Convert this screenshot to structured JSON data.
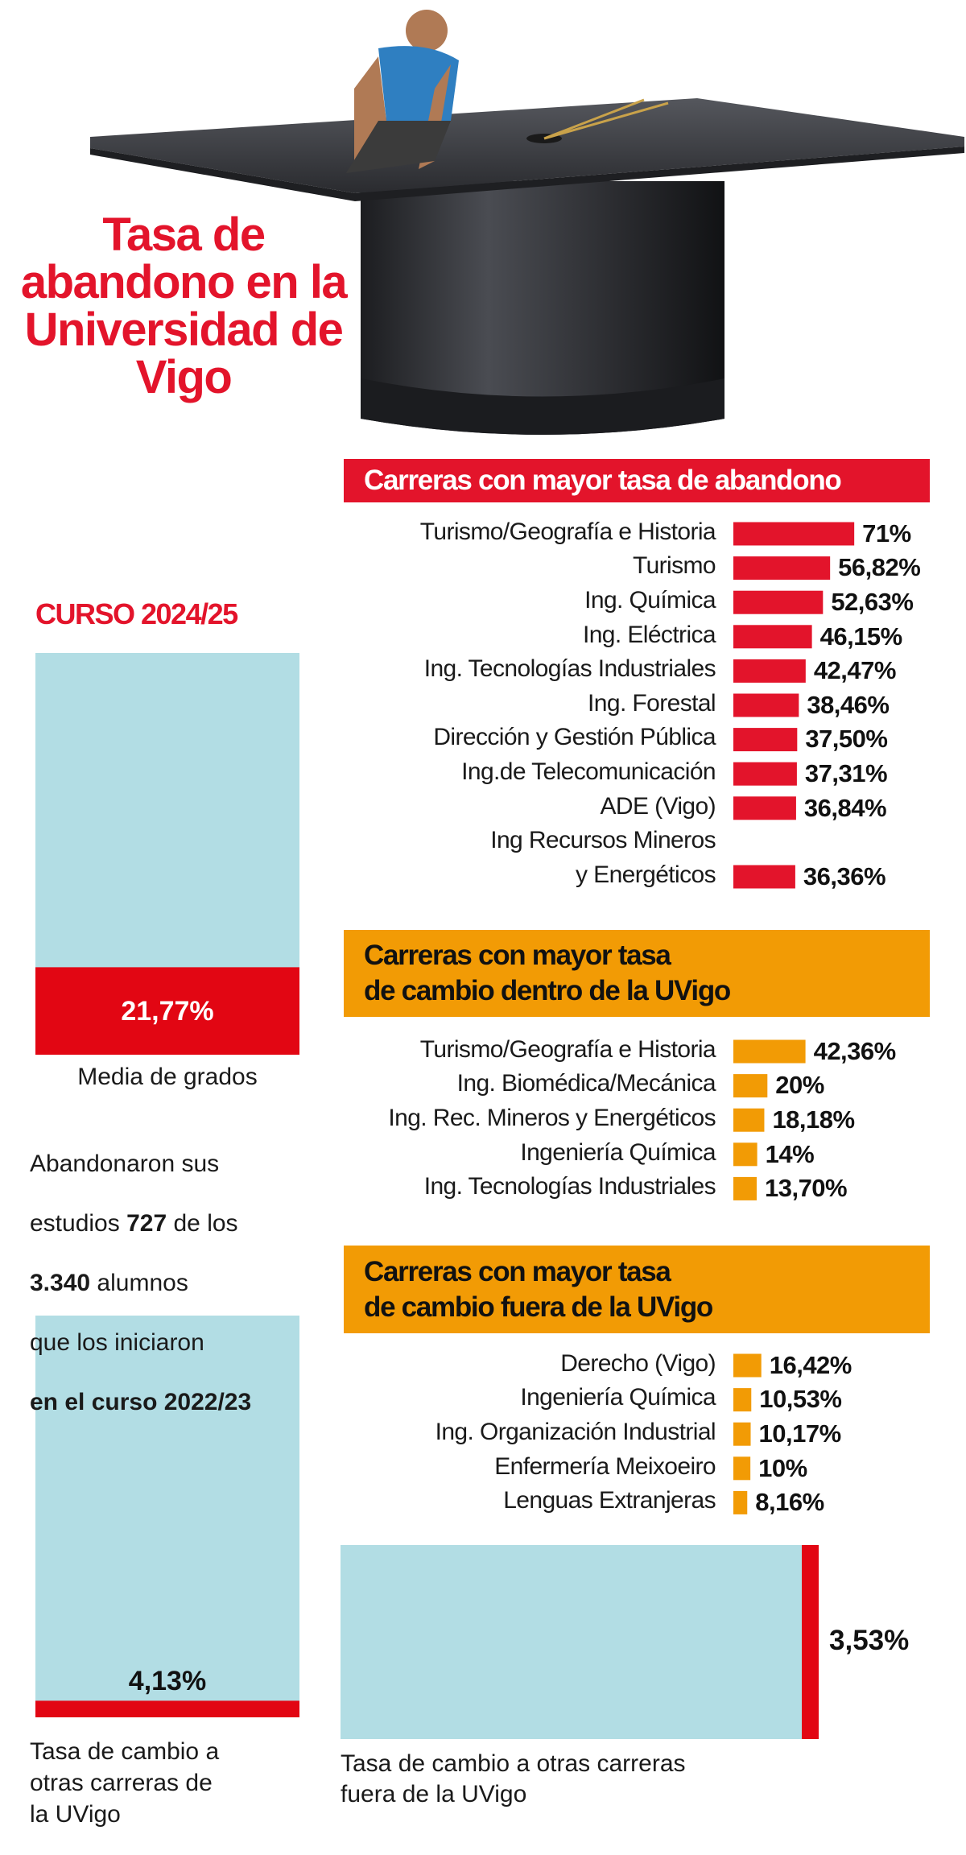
{
  "title": "Tasa de abandono en la Universidad de Vigo",
  "course": "CURSO 2024/25",
  "summary": [
    "Abandonaron sus",
    "estudios",
    "727",
    "de los",
    "3.340",
    "alumnos",
    "que los iniciaron",
    "en el curso 2022/23"
  ],
  "chart_data": [
    {
      "type": "bar",
      "orientation": "horizontal",
      "title": "Carreras con mayor tasa de abandono",
      "color": "#e3142b",
      "categories": [
        "Turismo/Geografía e Historia",
        "Turismo",
        "Ing. Química",
        "Ing. Eléctrica",
        "Ing. Tecnologías Industriales",
        "Ing. Forestal",
        "Dirección y Gestión Pública",
        "Ing.de Telecomunicación",
        "ADE (Vigo)",
        "Ing Recursos Mineros\ny Energéticos"
      ],
      "values": [
        71,
        56.82,
        52.63,
        46.15,
        42.47,
        38.46,
        37.5,
        37.31,
        36.84,
        36.36
      ],
      "value_labels": [
        "71%",
        "56,82%",
        "52,63%",
        "46,15%",
        "42,47%",
        "38,46%",
        "37,50%",
        "37,31%",
        "36,84%",
        "36,36%"
      ]
    },
    {
      "type": "bar",
      "orientation": "horizontal",
      "title": "Carreras con mayor tasa\nde cambio dentro de la UVigo",
      "color": "#f29b05",
      "categories": [
        "Turismo/Geografía e Historia",
        "Ing. Biomédica/Mecánica",
        "Ing. Rec. Mineros y Energéticos",
        "Ingeniería Química",
        "Ing. Tecnologías Industriales"
      ],
      "values": [
        42.36,
        20,
        18.18,
        14,
        13.7
      ],
      "value_labels": [
        "42,36%",
        "20%",
        "18,18%",
        "14%",
        "13,70%"
      ]
    },
    {
      "type": "bar",
      "orientation": "horizontal",
      "title": "Carreras con mayor tasa\nde cambio fuera de la UVigo",
      "color": "#f29b05",
      "categories": [
        "Derecho (Vigo)",
        "Ingeniería Química",
        "Ing. Organización Industrial",
        "Enfermería Meixoeiro",
        "Lenguas Extranjeras"
      ],
      "values": [
        16.42,
        10.53,
        10.17,
        10,
        8.16
      ],
      "value_labels": [
        "16,42%",
        "10,53%",
        "10,17%",
        "10%",
        "8,16%"
      ]
    },
    {
      "type": "bar",
      "orientation": "vertical",
      "color": "#e20613",
      "track_color": "#b2dde4",
      "categories": [
        "Media de grados"
      ],
      "values": [
        21.77
      ],
      "value_labels": [
        "21,77%"
      ]
    },
    {
      "type": "bar",
      "orientation": "vertical",
      "color": "#e20613",
      "track_color": "#b2dde4",
      "categories": [
        "Tasa de cambio a\notras carreras de\nla UVigo"
      ],
      "values": [
        4.13
      ],
      "value_labels": [
        "4,13%"
      ]
    },
    {
      "type": "bar",
      "orientation": "horizontal",
      "color": "#e20613",
      "track_color": "#b2dde4",
      "categories": [
        "Tasa de cambio a otras carreras\nfuera de la UVigo"
      ],
      "values": [
        3.53
      ],
      "value_labels": [
        "3,53%"
      ]
    }
  ]
}
